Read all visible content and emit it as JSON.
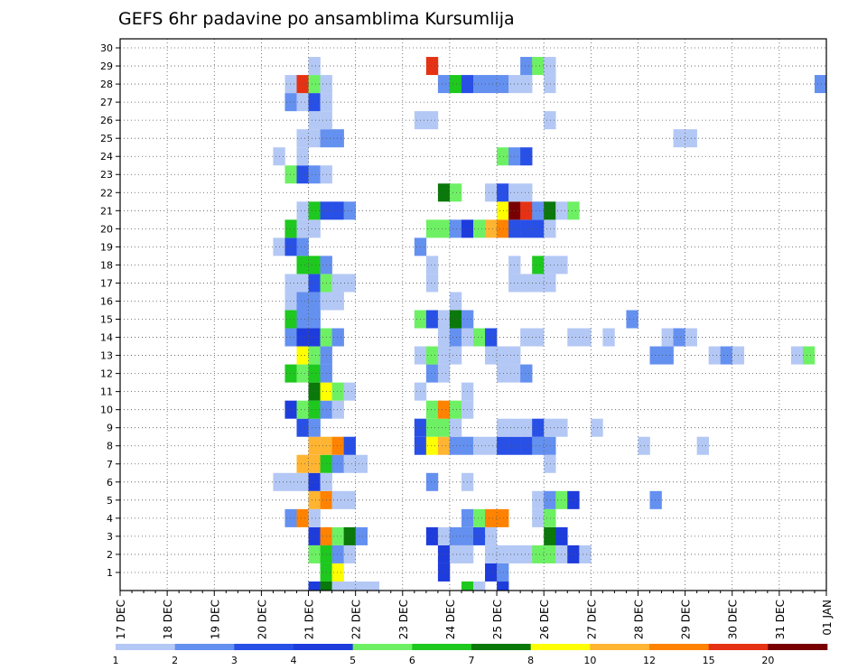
{
  "chart_data": {
    "type": "heatmap",
    "title": "GEFS 6hr padavine po ansamblima Kursumlija",
    "xlabel": "",
    "ylabel": "",
    "x_ticks": [
      "17 DEC",
      "18 DEC",
      "19 DEC",
      "20 DEC",
      "21 DEC",
      "22 DEC",
      "23 DEC",
      "24 DEC",
      "25 DEC",
      "26 DEC",
      "27 DEC",
      "28 DEC",
      "29 DEC",
      "30 DEC",
      "31 DEC",
      "01 JAN"
    ],
    "y_ticks": [
      "1",
      "2",
      "3",
      "4",
      "5",
      "6",
      "7",
      "8",
      "9",
      "10",
      "11",
      "12",
      "13",
      "14",
      "15",
      "16",
      "17",
      "18",
      "19",
      "20",
      "21",
      "22",
      "23",
      "24",
      "25",
      "26",
      "27",
      "28",
      "29",
      "30"
    ],
    "ylim": [
      0,
      30
    ],
    "time_step_hours": 6,
    "grid": true,
    "legend": {
      "placement": "bottom",
      "labels": [
        "1",
        "2",
        "3",
        "4",
        "5",
        "6",
        "7",
        "8",
        "10",
        "12",
        "15",
        "20"
      ],
      "colors": [
        "#b4c8f5",
        "#6490f0",
        "#2850e6",
        "#1e3cdc",
        "#6ef064",
        "#1ec81e",
        "#0a780a",
        "#ffff00",
        "#ffb432",
        "#ff8200",
        "#e63214",
        "#780000"
      ]
    },
    "color_map": {
      "1": "#b4c8f5",
      "2": "#6490f0",
      "3": "#2850e6",
      "4": "#1e3cdc",
      "5": "#6ef064",
      "6": "#1ec81e",
      "7": "#0a780a",
      "8": "#ffff00",
      "9": "#ffb432",
      "10": "#ff8200",
      "11": "#e63214",
      "12": "#780000"
    },
    "rows": [
      {
        "member": 0,
        "cells": [
          [
            16,
            4
          ],
          [
            17,
            7
          ],
          [
            18,
            1
          ],
          [
            19,
            1
          ],
          [
            20,
            1
          ],
          [
            21,
            1
          ],
          [
            29,
            6
          ],
          [
            30,
            1
          ],
          [
            32,
            4
          ]
        ]
      },
      {
        "member": 1,
        "cells": [
          [
            17,
            6
          ],
          [
            18,
            8
          ],
          [
            27,
            4
          ],
          [
            31,
            4
          ],
          [
            32,
            2
          ]
        ]
      },
      {
        "member": 2,
        "cells": [
          [
            16,
            5
          ],
          [
            17,
            6
          ],
          [
            18,
            2
          ],
          [
            19,
            1
          ],
          [
            27,
            4
          ],
          [
            28,
            1
          ],
          [
            29,
            1
          ],
          [
            31,
            1
          ],
          [
            32,
            1
          ],
          [
            33,
            1
          ],
          [
            34,
            1
          ],
          [
            35,
            5
          ],
          [
            36,
            5
          ],
          [
            37,
            1
          ],
          [
            38,
            4
          ],
          [
            39,
            1
          ]
        ]
      },
      {
        "member": 3,
        "cells": [
          [
            16,
            4
          ],
          [
            17,
            10
          ],
          [
            18,
            5
          ],
          [
            19,
            7
          ],
          [
            20,
            2
          ],
          [
            26,
            4
          ],
          [
            27,
            1
          ],
          [
            28,
            2
          ],
          [
            29,
            2
          ],
          [
            30,
            3
          ],
          [
            31,
            1
          ],
          [
            36,
            7
          ],
          [
            37,
            4
          ]
        ]
      },
      {
        "member": 4,
        "cells": [
          [
            14,
            2
          ],
          [
            15,
            10
          ],
          [
            16,
            1
          ],
          [
            29,
            2
          ],
          [
            30,
            5
          ],
          [
            31,
            10
          ],
          [
            32,
            10
          ],
          [
            35,
            1
          ],
          [
            36,
            5
          ]
        ]
      },
      {
        "member": 5,
        "cells": [
          [
            16,
            9
          ],
          [
            17,
            10
          ],
          [
            18,
            1
          ],
          [
            19,
            1
          ],
          [
            35,
            1
          ],
          [
            36,
            2
          ],
          [
            37,
            5
          ],
          [
            38,
            4
          ],
          [
            45,
            2
          ]
        ]
      },
      {
        "member": 6,
        "cells": [
          [
            13,
            1
          ],
          [
            14,
            1
          ],
          [
            15,
            1
          ],
          [
            16,
            4
          ],
          [
            17,
            1
          ],
          [
            26,
            2
          ],
          [
            29,
            1
          ]
        ]
      },
      {
        "member": 7,
        "cells": [
          [
            15,
            9
          ],
          [
            16,
            9
          ],
          [
            17,
            6
          ],
          [
            18,
            2
          ],
          [
            19,
            1
          ],
          [
            20,
            1
          ],
          [
            36,
            1
          ]
        ]
      },
      {
        "member": 8,
        "cells": [
          [
            16,
            9
          ],
          [
            17,
            9
          ],
          [
            18,
            10
          ],
          [
            19,
            3
          ],
          [
            25,
            3
          ],
          [
            26,
            8
          ],
          [
            27,
            9
          ],
          [
            28,
            2
          ],
          [
            29,
            2
          ],
          [
            30,
            1
          ],
          [
            31,
            1
          ],
          [
            32,
            3
          ],
          [
            33,
            3
          ],
          [
            34,
            3
          ],
          [
            35,
            2
          ],
          [
            36,
            2
          ],
          [
            44,
            1
          ],
          [
            49,
            1
          ]
        ]
      },
      {
        "member": 9,
        "cells": [
          [
            15,
            3
          ],
          [
            16,
            2
          ],
          [
            25,
            3
          ],
          [
            26,
            5
          ],
          [
            27,
            5
          ],
          [
            28,
            1
          ],
          [
            32,
            1
          ],
          [
            33,
            1
          ],
          [
            34,
            1
          ],
          [
            35,
            3
          ],
          [
            36,
            1
          ],
          [
            37,
            1
          ],
          [
            40,
            1
          ]
        ]
      },
      {
        "member": 10,
        "cells": [
          [
            14,
            4
          ],
          [
            15,
            5
          ],
          [
            16,
            6
          ],
          [
            17,
            2
          ],
          [
            18,
            1
          ],
          [
            26,
            5
          ],
          [
            27,
            10
          ],
          [
            28,
            5
          ],
          [
            29,
            1
          ]
        ]
      },
      {
        "member": 11,
        "cells": [
          [
            16,
            7
          ],
          [
            17,
            8
          ],
          [
            18,
            5
          ],
          [
            19,
            1
          ],
          [
            25,
            1
          ],
          [
            29,
            1
          ]
        ]
      },
      {
        "member": 12,
        "cells": [
          [
            14,
            6
          ],
          [
            15,
            5
          ],
          [
            16,
            6
          ],
          [
            17,
            2
          ],
          [
            26,
            2
          ],
          [
            27,
            1
          ],
          [
            32,
            1
          ],
          [
            33,
            1
          ],
          [
            34,
            2
          ]
        ]
      },
      {
        "member": 13,
        "cells": [
          [
            15,
            8
          ],
          [
            16,
            5
          ],
          [
            17,
            2
          ],
          [
            25,
            1
          ],
          [
            26,
            5
          ],
          [
            27,
            1
          ],
          [
            28,
            1
          ],
          [
            31,
            1
          ],
          [
            32,
            1
          ],
          [
            33,
            1
          ],
          [
            45,
            2
          ],
          [
            46,
            2
          ],
          [
            50,
            1
          ],
          [
            51,
            2
          ],
          [
            52,
            1
          ],
          [
            57,
            1
          ],
          [
            58,
            5
          ]
        ]
      },
      {
        "member": 14,
        "cells": [
          [
            14,
            2
          ],
          [
            15,
            4
          ],
          [
            16,
            4
          ],
          [
            17,
            5
          ],
          [
            18,
            2
          ],
          [
            27,
            1
          ],
          [
            28,
            2
          ],
          [
            29,
            1
          ],
          [
            30,
            5
          ],
          [
            31,
            3
          ],
          [
            34,
            1
          ],
          [
            35,
            1
          ],
          [
            38,
            1
          ],
          [
            39,
            1
          ],
          [
            41,
            1
          ],
          [
            46,
            1
          ],
          [
            47,
            2
          ],
          [
            48,
            1
          ]
        ]
      },
      {
        "member": 15,
        "cells": [
          [
            14,
            6
          ],
          [
            15,
            2
          ],
          [
            16,
            2
          ],
          [
            25,
            5
          ],
          [
            26,
            3
          ],
          [
            27,
            1
          ],
          [
            28,
            7
          ],
          [
            29,
            2
          ],
          [
            43,
            2
          ]
        ]
      },
      {
        "member": 16,
        "cells": [
          [
            14,
            1
          ],
          [
            15,
            2
          ],
          [
            16,
            2
          ],
          [
            17,
            1
          ],
          [
            18,
            1
          ],
          [
            28,
            1
          ]
        ]
      },
      {
        "member": 17,
        "cells": [
          [
            14,
            1
          ],
          [
            15,
            1
          ],
          [
            16,
            3
          ],
          [
            17,
            5
          ],
          [
            18,
            1
          ],
          [
            19,
            1
          ],
          [
            26,
            1
          ],
          [
            33,
            1
          ],
          [
            34,
            1
          ],
          [
            35,
            1
          ],
          [
            36,
            1
          ]
        ]
      },
      {
        "member": 18,
        "cells": [
          [
            15,
            6
          ],
          [
            16,
            6
          ],
          [
            17,
            2
          ],
          [
            26,
            1
          ],
          [
            33,
            1
          ],
          [
            35,
            6
          ],
          [
            36,
            1
          ],
          [
            37,
            1
          ]
        ]
      },
      {
        "member": 19,
        "cells": [
          [
            13,
            1
          ],
          [
            14,
            3
          ],
          [
            15,
            2
          ],
          [
            25,
            2
          ]
        ]
      },
      {
        "member": 20,
        "cells": [
          [
            14,
            6
          ],
          [
            15,
            1
          ],
          [
            16,
            1
          ],
          [
            26,
            5
          ],
          [
            27,
            5
          ],
          [
            28,
            2
          ],
          [
            29,
            4
          ],
          [
            30,
            5
          ],
          [
            31,
            9
          ],
          [
            32,
            10
          ],
          [
            33,
            3
          ],
          [
            34,
            3
          ],
          [
            35,
            3
          ],
          [
            36,
            1
          ]
        ]
      },
      {
        "member": 21,
        "cells": [
          [
            15,
            1
          ],
          [
            16,
            6
          ],
          [
            17,
            3
          ],
          [
            18,
            3
          ],
          [
            19,
            2
          ],
          [
            32,
            8
          ],
          [
            33,
            12
          ],
          [
            34,
            11
          ],
          [
            35,
            2
          ],
          [
            36,
            7
          ],
          [
            37,
            1
          ],
          [
            38,
            5
          ]
        ]
      },
      {
        "member": 22,
        "cells": [
          [
            27,
            7
          ],
          [
            28,
            5
          ],
          [
            31,
            1
          ],
          [
            32,
            3
          ],
          [
            33,
            1
          ],
          [
            34,
            1
          ]
        ]
      },
      {
        "member": 23,
        "cells": [
          [
            14,
            5
          ],
          [
            15,
            3
          ],
          [
            16,
            2
          ],
          [
            17,
            1
          ]
        ]
      },
      {
        "member": 24,
        "cells": [
          [
            13,
            1
          ],
          [
            15,
            1
          ],
          [
            32,
            5
          ],
          [
            33,
            2
          ],
          [
            34,
            3
          ]
        ]
      },
      {
        "member": 25,
        "cells": [
          [
            15,
            1
          ],
          [
            16,
            1
          ],
          [
            17,
            2
          ],
          [
            18,
            2
          ],
          [
            47,
            1
          ],
          [
            48,
            1
          ]
        ]
      },
      {
        "member": 26,
        "cells": [
          [
            16,
            1
          ],
          [
            17,
            1
          ],
          [
            25,
            1
          ],
          [
            26,
            1
          ],
          [
            36,
            1
          ]
        ]
      },
      {
        "member": 27,
        "cells": [
          [
            14,
            2
          ],
          [
            15,
            1
          ],
          [
            16,
            3
          ],
          [
            17,
            1
          ]
        ]
      },
      {
        "member": 28,
        "cells": [
          [
            14,
            1
          ],
          [
            15,
            11
          ],
          [
            16,
            5
          ],
          [
            17,
            1
          ],
          [
            27,
            2
          ],
          [
            28,
            6
          ],
          [
            29,
            3
          ],
          [
            30,
            2
          ],
          [
            31,
            2
          ],
          [
            32,
            2
          ],
          [
            33,
            1
          ],
          [
            34,
            1
          ],
          [
            36,
            1
          ],
          [
            59,
            2
          ]
        ]
      },
      {
        "member": 29,
        "cells": [
          [
            16,
            1
          ],
          [
            26,
            11
          ],
          [
            34,
            2
          ],
          [
            35,
            5
          ],
          [
            36,
            1
          ]
        ]
      }
    ]
  }
}
